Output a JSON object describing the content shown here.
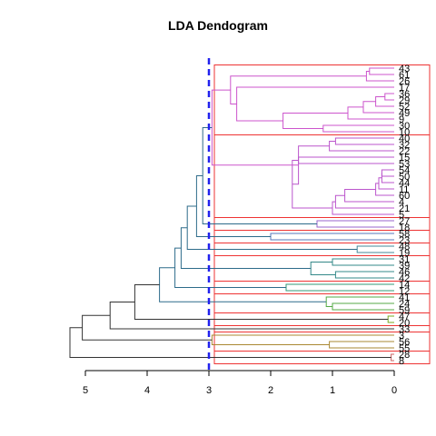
{
  "chart_data": {
    "type": "dendrogram",
    "title": "LDA Dendogram",
    "orientation": "horizontal",
    "xlim": [
      0,
      5.3
    ],
    "x_ticks": [
      "5",
      "4",
      "3",
      "2",
      "1",
      "0"
    ],
    "x_tick_values": [
      5,
      4,
      3,
      2,
      1,
      0
    ],
    "cut_height": 3.0,
    "cut_line_color": "#2222ee",
    "cluster_box_color": "#ee3333",
    "leaves": [
      "43",
      "61",
      "26",
      "17",
      "36",
      "29",
      "52",
      "49",
      "9",
      "30",
      "10",
      "40",
      "32",
      "22",
      "15",
      "53",
      "54",
      "50",
      "44",
      "11",
      "60",
      "4",
      "21",
      "5",
      "27",
      "18",
      "58",
      "23",
      "48",
      "19",
      "31",
      "39",
      "46",
      "42",
      "14",
      "12",
      "41",
      "24",
      "59",
      "47",
      "20",
      "33",
      "3",
      "56",
      "55",
      "28",
      "8"
    ],
    "clusters": [
      {
        "name": "c1",
        "color": "#cc55cc",
        "leaves": [
          "43",
          "61",
          "26",
          "17",
          "36",
          "29",
          "52",
          "49",
          "9",
          "30",
          "10"
        ]
      },
      {
        "name": "c2",
        "color": "#bb55cc",
        "leaves": [
          "40",
          "32",
          "22",
          "15",
          "53",
          "54",
          "50",
          "44",
          "11",
          "60",
          "4",
          "21",
          "5"
        ]
      },
      {
        "name": "c3",
        "color": "#9966cc",
        "leaves": [
          "27",
          "18"
        ]
      },
      {
        "name": "c4",
        "color": "#5577bb",
        "leaves": [
          "58",
          "23"
        ]
      },
      {
        "name": "c5",
        "color": "#448899",
        "leaves": [
          "48",
          "19"
        ]
      },
      {
        "name": "c6",
        "color": "#338888",
        "leaves": [
          "31",
          "39",
          "46",
          "42"
        ]
      },
      {
        "name": "c7",
        "color": "#339977",
        "leaves": [
          "14",
          "12"
        ]
      },
      {
        "name": "c8",
        "color": "#55aa44",
        "leaves": [
          "41",
          "24",
          "59"
        ]
      },
      {
        "name": "c9",
        "color": "#77aa22",
        "leaves": [
          "47",
          "20"
        ]
      },
      {
        "name": "c10",
        "color": "#99aa22",
        "leaves": [
          "33"
        ]
      },
      {
        "name": "c11",
        "color": "#aa8833",
        "leaves": [
          "3",
          "56",
          "55"
        ]
      },
      {
        "name": "c12",
        "color": "#cc6666",
        "leaves": [
          "28",
          "8"
        ]
      }
    ],
    "merges": [
      {
        "a": "L:43",
        "b": "L:61",
        "h": 0.4,
        "color": "#cc55cc"
      },
      {
        "a": "M:0",
        "b": "L:26",
        "h": 0.45,
        "color": "#cc55cc"
      },
      {
        "a": "L:36",
        "b": "L:29",
        "h": 0.15,
        "color": "#cc55cc"
      },
      {
        "a": "M:2",
        "b": "L:52",
        "h": 0.3,
        "color": "#cc55cc"
      },
      {
        "a": "M:3",
        "b": "L:49",
        "h": 0.5,
        "color": "#cc55cc"
      },
      {
        "a": "M:4",
        "b": "L:9",
        "h": 0.75,
        "color": "#cc55cc"
      },
      {
        "a": "L:30",
        "b": "L:10",
        "h": 1.15,
        "color": "#cc55cc"
      },
      {
        "a": "M:5",
        "b": "M:6",
        "h": 1.8,
        "color": "#cc55cc"
      },
      {
        "a": "L:17",
        "b": "M:7",
        "h": 2.55,
        "color": "#cc55cc"
      },
      {
        "a": "M:1",
        "b": "M:8",
        "h": 2.65,
        "color": "#cc55cc"
      },
      {
        "a": "L:40",
        "b": "L:32",
        "h": 0.95,
        "color": "#bb55cc"
      },
      {
        "a": "M:10",
        "b": "L:22",
        "h": 1.05,
        "color": "#bb55cc"
      },
      {
        "a": "L:15",
        "b": "L:53",
        "h": 1.55,
        "color": "#bb55cc"
      },
      {
        "a": "L:54",
        "b": "L:50",
        "h": 0.2,
        "color": "#bb55cc"
      },
      {
        "a": "M:13",
        "b": "L:44",
        "h": 0.2,
        "color": "#bb55cc"
      },
      {
        "a": "M:14",
        "b": "L:11",
        "h": 0.25,
        "color": "#bb55cc"
      },
      {
        "a": "M:15",
        "b": "L:60",
        "h": 0.3,
        "color": "#bb55cc"
      },
      {
        "a": "M:16",
        "b": "L:4",
        "h": 0.8,
        "color": "#bb55cc"
      },
      {
        "a": "M:17",
        "b": "L:21",
        "h": 0.95,
        "color": "#bb55cc"
      },
      {
        "a": "M:18",
        "b": "L:5",
        "h": 1.0,
        "color": "#bb55cc"
      },
      {
        "a": "M:12",
        "b": "M:19",
        "h": 1.65,
        "color": "#bb55cc"
      },
      {
        "a": "M:11",
        "b": "M:20",
        "h": 1.55,
        "color": "#bb55cc"
      },
      {
        "a": "M:9",
        "b": "M:21",
        "h": 2.95,
        "color": "#cc55cc"
      },
      {
        "a": "L:27",
        "b": "L:18",
        "h": 1.25,
        "color": "#9966cc"
      },
      {
        "a": "M:22",
        "b": "M:23",
        "h": 3.1,
        "color": "#2d6b8a"
      },
      {
        "a": "L:58",
        "b": "L:23",
        "h": 2.0,
        "color": "#5577bb"
      },
      {
        "a": "M:24",
        "b": "M:25",
        "h": 3.2,
        "color": "#2d6b8a"
      },
      {
        "a": "L:48",
        "b": "L:19",
        "h": 0.6,
        "color": "#448899"
      },
      {
        "a": "M:26",
        "b": "M:27",
        "h": 3.35,
        "color": "#2d6b8a"
      },
      {
        "a": "L:31",
        "b": "L:39",
        "h": 1.0,
        "color": "#338888"
      },
      {
        "a": "L:46",
        "b": "L:42",
        "h": 0.95,
        "color": "#338888"
      },
      {
        "a": "M:29",
        "b": "M:30",
        "h": 1.35,
        "color": "#338888"
      },
      {
        "a": "M:28",
        "b": "M:31",
        "h": 3.45,
        "color": "#2d6b8a"
      },
      {
        "a": "L:14",
        "b": "L:12",
        "h": 1.75,
        "color": "#339977"
      },
      {
        "a": "M:32",
        "b": "M:33",
        "h": 3.55,
        "color": "#2d6b8a"
      },
      {
        "a": "L:24",
        "b": "L:59",
        "h": 1.0,
        "color": "#55aa44"
      },
      {
        "a": "L:41",
        "b": "M:35",
        "h": 1.1,
        "color": "#55aa44"
      },
      {
        "a": "M:34",
        "b": "M:36",
        "h": 3.8,
        "color": "#2d6b8a"
      },
      {
        "a": "L:47",
        "b": "L:20",
        "h": 0.1,
        "color": "#77aa22"
      },
      {
        "a": "M:37",
        "b": "M:38",
        "h": 4.2,
        "color": "#333333"
      },
      {
        "a": "M:39",
        "b": "L:33",
        "h": 4.6,
        "color": "#333333"
      },
      {
        "a": "L:56",
        "b": "L:55",
        "h": 1.05,
        "color": "#aa8833"
      },
      {
        "a": "L:3",
        "b": "M:41",
        "h": 2.95,
        "color": "#aa8833"
      },
      {
        "a": "M:40",
        "b": "M:42",
        "h": 5.05,
        "color": "#333333"
      },
      {
        "a": "L:28",
        "b": "L:8",
        "h": 0.05,
        "color": "#cc6666"
      },
      {
        "a": "M:43",
        "b": "M:44",
        "h": 5.25,
        "color": "#333333"
      }
    ]
  }
}
